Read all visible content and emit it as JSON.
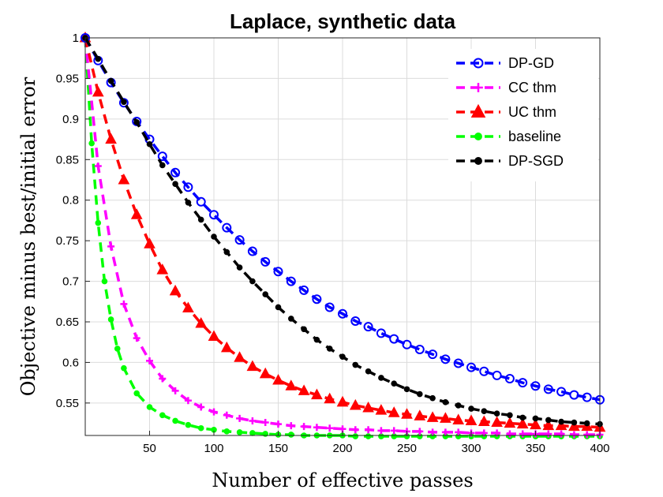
{
  "chart_data": {
    "type": "line",
    "title": "Laplace, synthetic data",
    "xlabel": "Number of effective passes",
    "ylabel": "Objective minus best/initial error",
    "xlim": [
      0,
      400
    ],
    "ylim": [
      0.51,
      1.0
    ],
    "x_ticks": [
      50,
      100,
      150,
      200,
      250,
      300,
      350,
      400
    ],
    "y_ticks": [
      0.55,
      0.6,
      0.65,
      0.7,
      0.75,
      0.8,
      0.85,
      0.9,
      0.95,
      1
    ],
    "y_tick_labels": [
      "0.55",
      "0.6",
      "0.65",
      "0.7",
      "0.75",
      "0.8",
      "0.85",
      "0.9",
      "0.95",
      "1"
    ],
    "grid": true,
    "legend_position": "top-right",
    "series": [
      {
        "name": "DP-GD",
        "color": "#0000ff",
        "marker": "circle",
        "x": [
          0,
          10,
          20,
          30,
          40,
          50,
          60,
          70,
          80,
          90,
          100,
          110,
          120,
          130,
          140,
          150,
          160,
          170,
          180,
          190,
          200,
          210,
          220,
          230,
          240,
          250,
          260,
          270,
          280,
          290,
          300,
          310,
          320,
          330,
          340,
          350,
          360,
          370,
          380,
          390,
          400
        ],
        "y": [
          1.0,
          0.972,
          0.945,
          0.92,
          0.897,
          0.875,
          0.854,
          0.834,
          0.816,
          0.798,
          0.782,
          0.766,
          0.751,
          0.737,
          0.724,
          0.712,
          0.7,
          0.689,
          0.678,
          0.668,
          0.66,
          0.651,
          0.644,
          0.636,
          0.629,
          0.622,
          0.616,
          0.61,
          0.604,
          0.599,
          0.594,
          0.589,
          0.584,
          0.58,
          0.575,
          0.571,
          0.567,
          0.564,
          0.56,
          0.557,
          0.554
        ]
      },
      {
        "name": "CC thm",
        "color": "#ff00ff",
        "marker": "plus",
        "x": [
          0,
          10,
          20,
          30,
          40,
          50,
          60,
          70,
          80,
          90,
          100,
          110,
          120,
          130,
          140,
          150,
          160,
          170,
          180,
          190,
          200,
          210,
          220,
          230,
          240,
          250,
          260,
          270,
          280,
          290,
          300,
          310,
          320,
          330,
          340,
          350,
          360,
          370,
          380,
          390,
          400
        ],
        "y": [
          1.0,
          0.842,
          0.743,
          0.672,
          0.63,
          0.602,
          0.58,
          0.565,
          0.553,
          0.545,
          0.539,
          0.535,
          0.531,
          0.528,
          0.526,
          0.524,
          0.522,
          0.521,
          0.52,
          0.519,
          0.518,
          0.517,
          0.517,
          0.516,
          0.516,
          0.515,
          0.515,
          0.514,
          0.514,
          0.514,
          0.513,
          0.513,
          0.513,
          0.512,
          0.512,
          0.512,
          0.512,
          0.512,
          0.511,
          0.511,
          0.511
        ]
      },
      {
        "name": "UC thm",
        "color": "#ff0000",
        "marker": "triangle",
        "x": [
          0,
          10,
          20,
          30,
          40,
          50,
          60,
          70,
          80,
          90,
          100,
          110,
          120,
          130,
          140,
          150,
          160,
          170,
          180,
          190,
          200,
          210,
          220,
          230,
          240,
          250,
          260,
          270,
          280,
          290,
          300,
          310,
          320,
          330,
          340,
          350,
          360,
          370,
          380,
          390,
          400
        ],
        "y": [
          1.0,
          0.933,
          0.875,
          0.825,
          0.782,
          0.746,
          0.714,
          0.688,
          0.667,
          0.648,
          0.632,
          0.618,
          0.606,
          0.595,
          0.586,
          0.578,
          0.571,
          0.565,
          0.56,
          0.555,
          0.551,
          0.547,
          0.544,
          0.541,
          0.538,
          0.536,
          0.534,
          0.532,
          0.531,
          0.529,
          0.528,
          0.527,
          0.526,
          0.525,
          0.524,
          0.523,
          0.522,
          0.522,
          0.521,
          0.521,
          0.52
        ]
      },
      {
        "name": "baseline",
        "color": "#00ff00",
        "marker": "dot",
        "x": [
          0,
          5,
          10,
          15,
          20,
          25,
          30,
          40,
          50,
          60,
          70,
          80,
          90,
          100,
          110,
          120,
          130,
          140,
          150,
          160,
          170,
          180,
          190,
          200,
          210,
          220,
          230,
          240,
          250,
          260,
          270,
          280,
          290,
          300,
          310,
          320,
          330,
          340,
          350,
          360,
          370,
          380,
          390,
          400
        ],
        "y": [
          1.0,
          0.87,
          0.772,
          0.7,
          0.653,
          0.617,
          0.593,
          0.562,
          0.545,
          0.535,
          0.528,
          0.523,
          0.519,
          0.517,
          0.515,
          0.514,
          0.513,
          0.512,
          0.511,
          0.511,
          0.51,
          0.51,
          0.51,
          0.51,
          0.509,
          0.509,
          0.509,
          0.509,
          0.509,
          0.509,
          0.509,
          0.509,
          0.509,
          0.509,
          0.509,
          0.509,
          0.509,
          0.509,
          0.509,
          0.509,
          0.509,
          0.509,
          0.509,
          0.509
        ]
      },
      {
        "name": "DP-SGD",
        "color": "#000000",
        "marker": "dot",
        "x": [
          0,
          10,
          20,
          30,
          40,
          50,
          60,
          70,
          80,
          90,
          100,
          110,
          120,
          130,
          140,
          150,
          160,
          170,
          180,
          190,
          200,
          210,
          220,
          230,
          240,
          250,
          260,
          270,
          280,
          290,
          300,
          310,
          320,
          330,
          340,
          350,
          360,
          370,
          380,
          390,
          400
        ],
        "y": [
          1.0,
          0.974,
          0.947,
          0.921,
          0.896,
          0.869,
          0.843,
          0.82,
          0.797,
          0.776,
          0.755,
          0.736,
          0.717,
          0.7,
          0.684,
          0.668,
          0.654,
          0.641,
          0.628,
          0.617,
          0.607,
          0.597,
          0.589,
          0.581,
          0.574,
          0.567,
          0.561,
          0.556,
          0.551,
          0.547,
          0.543,
          0.54,
          0.537,
          0.535,
          0.532,
          0.531,
          0.529,
          0.527,
          0.526,
          0.525,
          0.524
        ]
      }
    ]
  }
}
